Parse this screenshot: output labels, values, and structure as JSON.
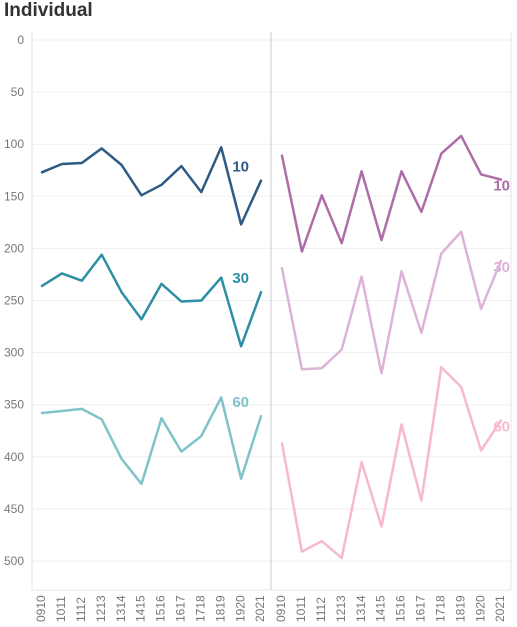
{
  "title": "Individual",
  "chart_data": [
    {
      "type": "line",
      "panel": "left",
      "x": [
        "0910",
        "1011",
        "1112",
        "1213",
        "1314",
        "1415",
        "1516",
        "1617",
        "1718",
        "1819",
        "1920",
        "2021"
      ],
      "ylim": [
        0,
        500
      ],
      "y_reversed": true,
      "y_ticks": [
        0,
        50,
        100,
        150,
        200,
        250,
        300,
        350,
        400,
        450,
        500
      ],
      "grid": "horizontal",
      "series": [
        {
          "name": "10",
          "color": "#2e5a84",
          "values": [
            127,
            119,
            118,
            104,
            120,
            149,
            139,
            121,
            146,
            103,
            177,
            135
          ]
        },
        {
          "name": "30",
          "color": "#2e8ea6",
          "values": [
            236,
            224,
            231,
            206,
            242,
            268,
            234,
            251,
            250,
            228,
            294,
            242
          ]
        },
        {
          "name": "60",
          "color": "#80c3c8",
          "values": [
            358,
            356,
            354,
            364,
            402,
            426,
            363,
            395,
            380,
            343,
            421,
            361
          ]
        }
      ]
    },
    {
      "type": "line",
      "panel": "right",
      "x": [
        "0910",
        "1011",
        "1112",
        "1213",
        "1314",
        "1415",
        "1516",
        "1617",
        "1718",
        "1819",
        "1920",
        "2021"
      ],
      "ylim": [
        0,
        500
      ],
      "y_reversed": true,
      "grid": "horizontal",
      "series": [
        {
          "name": "10",
          "color": "#ae6da8",
          "values": [
            111,
            203,
            149,
            195,
            126,
            192,
            126,
            165,
            109,
            92,
            129,
            134
          ]
        },
        {
          "name": "30",
          "color": "#ddb3d7",
          "values": [
            219,
            316,
            315,
            297,
            227,
            320,
            222,
            281,
            205,
            184,
            258,
            212
          ]
        },
        {
          "name": "60",
          "color": "#f7b8d2",
          "values": [
            387,
            491,
            481,
            497,
            405,
            467,
            369,
            442,
            314,
            333,
            394,
            365
          ]
        }
      ]
    }
  ]
}
